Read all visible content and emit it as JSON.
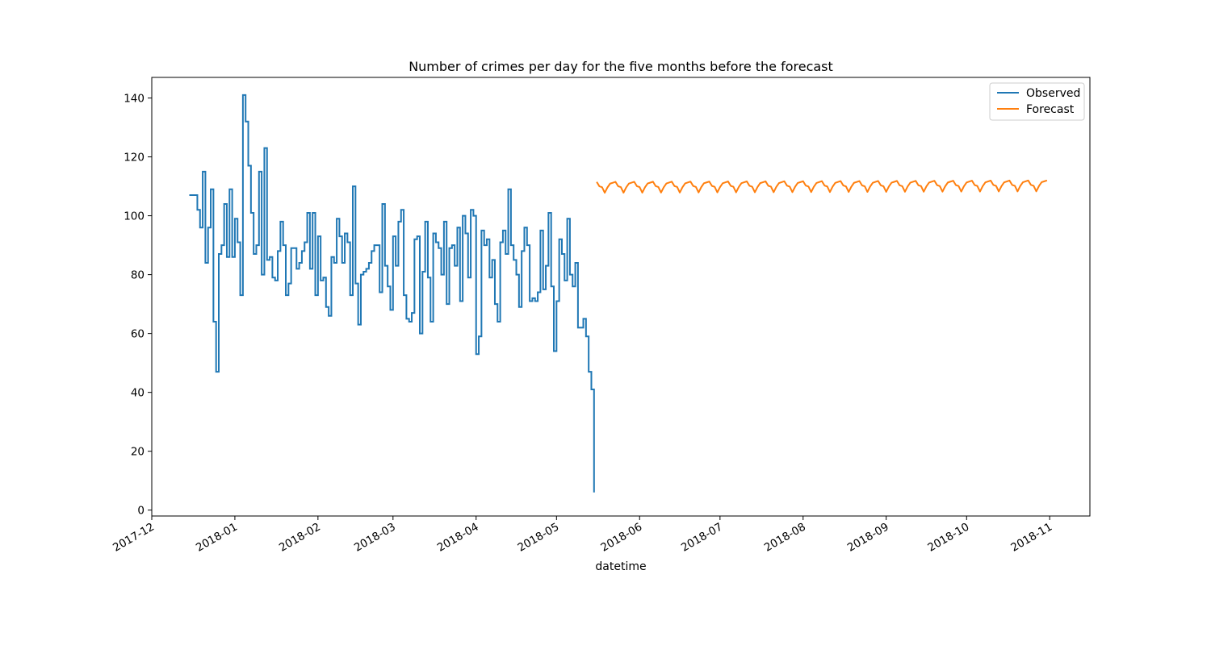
{
  "chart_data": {
    "type": "line",
    "title": "Number of crimes per day for the five months before the forecast",
    "xlabel": "datetime",
    "ylabel": "",
    "x_axis": "date",
    "xlim": [
      "2017-12-01",
      "2018-11-16"
    ],
    "ylim": [
      -2,
      147
    ],
    "x_ticks": [
      "2017-12",
      "2018-01",
      "2018-02",
      "2018-03",
      "2018-04",
      "2018-05",
      "2018-06",
      "2018-07",
      "2018-08",
      "2018-09",
      "2018-10",
      "2018-11"
    ],
    "y_ticks": [
      0,
      20,
      40,
      60,
      80,
      100,
      120,
      140
    ],
    "grid": false,
    "legend": "top-right",
    "series": [
      {
        "name": "Observed",
        "color": "#1f77b4",
        "style": "steps-post",
        "x": [
          "2017-12-15",
          "2017-12-18",
          "2017-12-19",
          "2017-12-20",
          "2017-12-21",
          "2017-12-22",
          "2017-12-23",
          "2017-12-24",
          "2017-12-25",
          "2017-12-26",
          "2017-12-27",
          "2017-12-28",
          "2017-12-29",
          "2017-12-30",
          "2017-12-31",
          "2018-01-01",
          "2018-01-02",
          "2018-01-03",
          "2018-01-04",
          "2018-01-05",
          "2018-01-06",
          "2018-01-07",
          "2018-01-08",
          "2018-01-09",
          "2018-01-10",
          "2018-01-11",
          "2018-01-12",
          "2018-01-13",
          "2018-01-14",
          "2018-01-15",
          "2018-01-16",
          "2018-01-17",
          "2018-01-18",
          "2018-01-19",
          "2018-01-20",
          "2018-01-21",
          "2018-01-22",
          "2018-01-23",
          "2018-01-24",
          "2018-01-25",
          "2018-01-26",
          "2018-01-27",
          "2018-01-28",
          "2018-01-29",
          "2018-01-30",
          "2018-01-31",
          "2018-02-01",
          "2018-02-02",
          "2018-02-03",
          "2018-02-04",
          "2018-02-05",
          "2018-02-06",
          "2018-02-07",
          "2018-02-08",
          "2018-02-09",
          "2018-02-10",
          "2018-02-11",
          "2018-02-12",
          "2018-02-13",
          "2018-02-14",
          "2018-02-15",
          "2018-02-16",
          "2018-02-17",
          "2018-02-18",
          "2018-02-19",
          "2018-02-20",
          "2018-02-21",
          "2018-02-22",
          "2018-02-23",
          "2018-02-24",
          "2018-02-25",
          "2018-02-26",
          "2018-02-27",
          "2018-02-28",
          "2018-03-01",
          "2018-03-02",
          "2018-03-03",
          "2018-03-04",
          "2018-03-05",
          "2018-03-06",
          "2018-03-07",
          "2018-03-08",
          "2018-03-09",
          "2018-03-10",
          "2018-03-11",
          "2018-03-12",
          "2018-03-13",
          "2018-03-14",
          "2018-03-15",
          "2018-03-16",
          "2018-03-17",
          "2018-03-18",
          "2018-03-19",
          "2018-03-20",
          "2018-03-21",
          "2018-03-22",
          "2018-03-23",
          "2018-03-24",
          "2018-03-25",
          "2018-03-26",
          "2018-03-27",
          "2018-03-28",
          "2018-03-29",
          "2018-03-30",
          "2018-03-31",
          "2018-04-01",
          "2018-04-02",
          "2018-04-03",
          "2018-04-04",
          "2018-04-05",
          "2018-04-06",
          "2018-04-07",
          "2018-04-08",
          "2018-04-09",
          "2018-04-10",
          "2018-04-11",
          "2018-04-12",
          "2018-04-13",
          "2018-04-14",
          "2018-04-15",
          "2018-04-16",
          "2018-04-17",
          "2018-04-18",
          "2018-04-19",
          "2018-04-20",
          "2018-04-21",
          "2018-04-22",
          "2018-04-23",
          "2018-04-24",
          "2018-04-25",
          "2018-04-26",
          "2018-04-27",
          "2018-04-28",
          "2018-04-29",
          "2018-04-30",
          "2018-05-01",
          "2018-05-02",
          "2018-05-03",
          "2018-05-04",
          "2018-05-05",
          "2018-05-06",
          "2018-05-07",
          "2018-05-08",
          "2018-05-09",
          "2018-05-10",
          "2018-05-11",
          "2018-05-12",
          "2018-05-13",
          "2018-05-14",
          "2018-05-15"
        ],
        "y": [
          107,
          102,
          96,
          115,
          84,
          96,
          109,
          64,
          47,
          87,
          90,
          104,
          86,
          109,
          86,
          99,
          91,
          73,
          141,
          132,
          117,
          101,
          87,
          90,
          115,
          80,
          123,
          85,
          86,
          79,
          78,
          88,
          98,
          90,
          73,
          77,
          89,
          89,
          82,
          84,
          88,
          91,
          101,
          82,
          101,
          73,
          93,
          78,
          79,
          69,
          66,
          86,
          84,
          99,
          93,
          84,
          94,
          91,
          73,
          110,
          77,
          63,
          80,
          81,
          82,
          84,
          88,
          90,
          90,
          74,
          104,
          83,
          76,
          68,
          93,
          83,
          98,
          102,
          73,
          65,
          64,
          67,
          92,
          93,
          60,
          81,
          98,
          79,
          64,
          94,
          91,
          89,
          80,
          98,
          70,
          89,
          90,
          83,
          96,
          71,
          100,
          94,
          79,
          102,
          100,
          53,
          59,
          95,
          90,
          92,
          79,
          85,
          70,
          64,
          91,
          95,
          87,
          109,
          90,
          85,
          80,
          69,
          88,
          96,
          90,
          71,
          72,
          71,
          74,
          95,
          75,
          83,
          101,
          76,
          54,
          71,
          92,
          87,
          78,
          99,
          80,
          76,
          84,
          62,
          62,
          65,
          59,
          47,
          41,
          6
        ]
      },
      {
        "name": "Forecast",
        "color": "#ff7f0e",
        "style": "line",
        "x_start": "2018-05-16",
        "x_end": "2018-10-31",
        "weekly_pattern": [
          111.5,
          110.0,
          109.7,
          107.8,
          109.6,
          110.9,
          111.2
        ],
        "trend_per_day": 0.003
      }
    ]
  }
}
